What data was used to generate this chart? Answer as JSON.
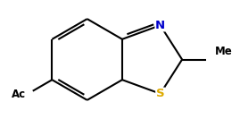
{
  "bg_color": "#ffffff",
  "line_color": "#000000",
  "bond_width": 1.5,
  "label_N": {
    "text": "N",
    "color": "#0000cc",
    "fontsize": 9.5,
    "fontweight": "bold"
  },
  "label_S": {
    "text": "S",
    "color": "#ddaa00",
    "fontsize": 9.5,
    "fontweight": "bold"
  },
  "label_Me": {
    "text": "Me",
    "color": "#000000",
    "fontsize": 8.5,
    "fontweight": "bold"
  },
  "label_Ac": {
    "text": "Ac",
    "color": "#000000",
    "fontsize": 8.5,
    "fontweight": "bold"
  },
  "figsize": [
    2.69,
    1.33
  ],
  "dpi": 100
}
